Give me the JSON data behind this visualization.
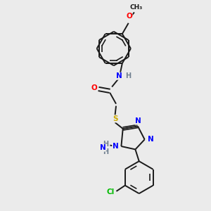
{
  "background_color": "#ebebeb",
  "bond_color": "#1a1a1a",
  "bond_width": 1.4,
  "atom_colors": {
    "C": "#1a1a1a",
    "N": "#0000ff",
    "O": "#ff0000",
    "S": "#ccaa00",
    "Cl": "#00bb00",
    "H": "#708090"
  },
  "figsize": [
    3.0,
    3.0
  ],
  "dpi": 100,
  "xlim": [
    0,
    10
  ],
  "ylim": [
    0,
    10
  ]
}
